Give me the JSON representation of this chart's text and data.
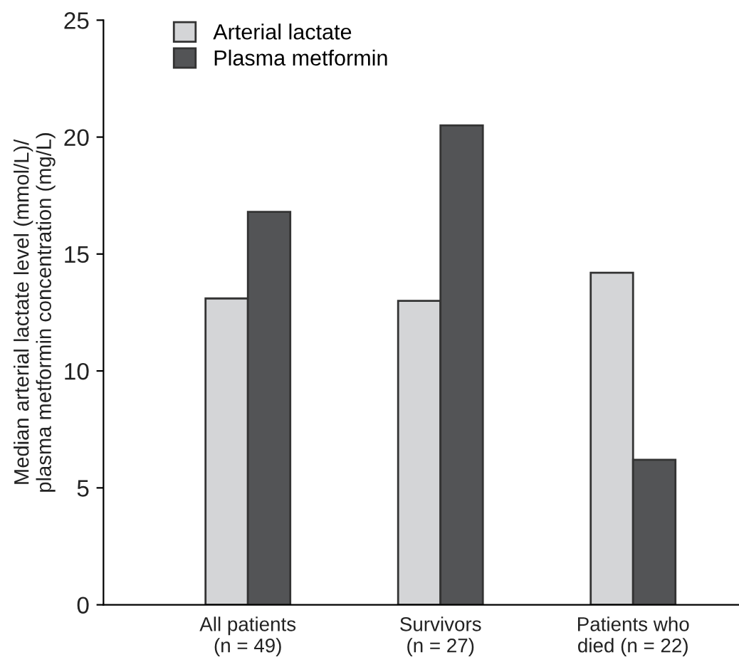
{
  "chart_data": {
    "type": "bar",
    "ylabel": "Median arterial lactate level (mmol/L)/\nplasma metformin concentration (mg/L)",
    "categories": [
      "All patients\n(n = 49)",
      "Survivors\n(n = 27)",
      "Patients who\ndied (n = 22)"
    ],
    "series": [
      {
        "name": "Arterial lactate",
        "color": "#d4d5d7",
        "values": [
          13.1,
          13.0,
          14.2
        ]
      },
      {
        "name": "Plasma metformin",
        "color": "#535456",
        "values": [
          16.8,
          20.5,
          6.2
        ]
      }
    ],
    "ylim": [
      0,
      25
    ],
    "yticks": [
      0,
      5,
      10,
      15,
      20,
      25
    ],
    "grid": false,
    "legend": "top left"
  }
}
